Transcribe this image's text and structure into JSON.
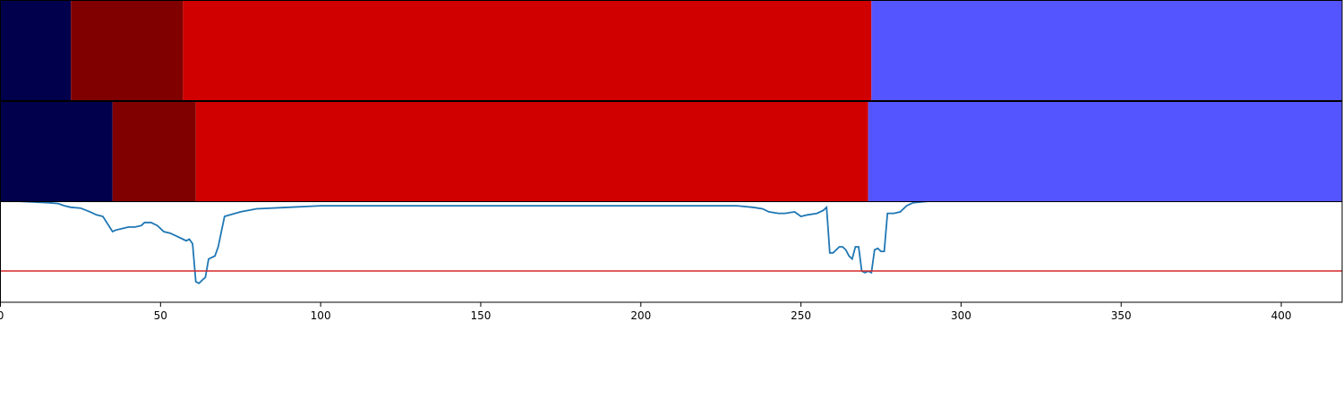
{
  "chart_data": {
    "type": "composite",
    "title": "",
    "xlabel": "",
    "ylabel": "",
    "xlim": [
      0,
      419
    ],
    "x_ticks": [
      0,
      50,
      100,
      150,
      200,
      250,
      300,
      350,
      400
    ],
    "x_tick_labels": [
      "0",
      "50",
      "100",
      "150",
      "200",
      "250",
      "300",
      "350",
      "400"
    ],
    "grid": false,
    "legend": "none",
    "segment_rows": [
      {
        "segments": [
          {
            "start": 0,
            "end": 22,
            "color": "#00004d"
          },
          {
            "start": 22,
            "end": 57,
            "color": "#800000"
          },
          {
            "start": 57,
            "end": 272,
            "color": "#d00000"
          },
          {
            "start": 272,
            "end": 419,
            "color": "#5555ff"
          }
        ]
      },
      {
        "segments": [
          {
            "start": 0,
            "end": 35,
            "color": "#00004d"
          },
          {
            "start": 35,
            "end": 61,
            "color": "#800000"
          },
          {
            "start": 61,
            "end": 271,
            "color": "#d00000"
          },
          {
            "start": 271,
            "end": 419,
            "color": "#5555ff"
          }
        ]
      }
    ],
    "line_series": {
      "color": "#1f77b4",
      "ylim": [
        0,
        1
      ],
      "x": [
        0,
        5,
        10,
        15,
        18,
        20,
        22,
        25,
        28,
        30,
        32,
        35,
        36,
        38,
        40,
        42,
        44,
        45,
        47,
        49,
        51,
        53,
        55,
        57,
        58,
        59,
        60,
        61,
        62,
        63,
        64,
        65,
        67,
        68,
        70,
        75,
        80,
        90,
        100,
        150,
        200,
        230,
        235,
        238,
        240,
        243,
        245,
        248,
        250,
        252,
        255,
        257,
        258,
        259,
        260,
        262,
        263,
        264,
        265,
        266,
        267,
        268,
        269,
        270,
        271,
        272,
        273,
        274,
        275,
        276,
        277,
        279,
        281,
        283,
        285,
        290,
        300,
        350,
        400,
        419
      ],
      "y": [
        1.0,
        1.0,
        0.995,
        0.99,
        0.985,
        0.97,
        0.96,
        0.955,
        0.93,
        0.91,
        0.9,
        0.8,
        0.81,
        0.82,
        0.83,
        0.83,
        0.84,
        0.86,
        0.86,
        0.84,
        0.8,
        0.79,
        0.77,
        0.75,
        0.74,
        0.75,
        0.72,
        0.47,
        0.46,
        0.48,
        0.5,
        0.62,
        0.64,
        0.7,
        0.9,
        0.93,
        0.95,
        0.96,
        0.97,
        0.97,
        0.97,
        0.97,
        0.96,
        0.95,
        0.93,
        0.92,
        0.92,
        0.93,
        0.9,
        0.91,
        0.92,
        0.94,
        0.96,
        0.66,
        0.66,
        0.7,
        0.7,
        0.68,
        0.64,
        0.62,
        0.7,
        0.7,
        0.54,
        0.53,
        0.54,
        0.53,
        0.68,
        0.69,
        0.67,
        0.67,
        0.92,
        0.92,
        0.93,
        0.97,
        0.99,
        1.0,
        1.0,
        1.0,
        1.0,
        1.0
      ]
    },
    "threshold_line": {
      "y": 0.2,
      "color": "#d62728"
    }
  }
}
